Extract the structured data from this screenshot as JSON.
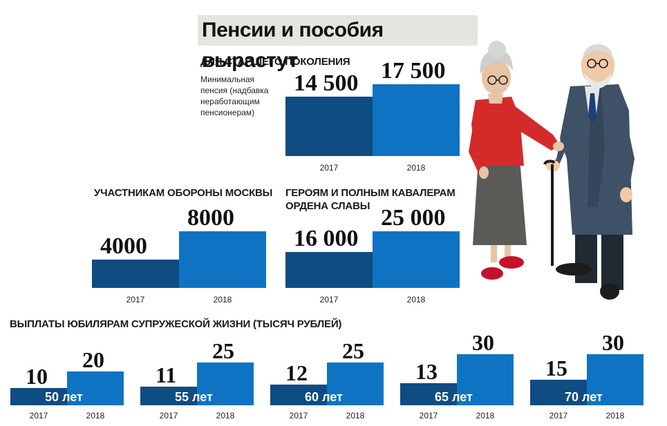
{
  "title": "Пенсии и пособия вырастут",
  "colors": {
    "bar_2017": "#0f4c81",
    "bar_2018": "#0f73c3",
    "title_bg": "#e5e4df"
  },
  "chart_data": [
    {
      "type": "bar",
      "title": "ДЛЯ СТАРШЕГО ПОКОЛЕНИЯ",
      "note": "Минимальная пенсия (надбавка неработающим пенсионерам)",
      "categories": [
        "2017",
        "2018"
      ],
      "values": [
        14500,
        17500
      ],
      "value_labels": [
        "14 500",
        "17 500"
      ]
    },
    {
      "type": "bar",
      "title": "УЧАСТНИКАМ ОБОРОНЫ МОСКВЫ",
      "categories": [
        "2017",
        "2018"
      ],
      "values": [
        4000,
        8000
      ],
      "value_labels": [
        "4000",
        "8000"
      ]
    },
    {
      "type": "bar",
      "title": "ГЕРОЯМ И ПОЛНЫМ КАВАЛЕРАМ ОРДЕНА СЛАВЫ",
      "categories": [
        "2017",
        "2018"
      ],
      "values": [
        16000,
        25000
      ],
      "value_labels": [
        "16 000",
        "25 000"
      ]
    },
    {
      "type": "bar",
      "title": "ВЫПЛАТЫ ЮБИЛЯРАМ СУПРУЖЕСКОЙ ЖИЗНИ (ТЫСЯЧ РУБЛЕЙ)",
      "categories": [
        "2017",
        "2018"
      ],
      "groups": [
        {
          "label": "50 лет",
          "values": [
            10,
            20
          ]
        },
        {
          "label": "55 лет",
          "values": [
            11,
            25
          ]
        },
        {
          "label": "60 лет",
          "values": [
            12,
            25
          ]
        },
        {
          "label": "65 лет",
          "values": [
            13,
            30
          ]
        },
        {
          "label": "70 лет",
          "values": [
            15,
            30
          ]
        }
      ]
    }
  ]
}
